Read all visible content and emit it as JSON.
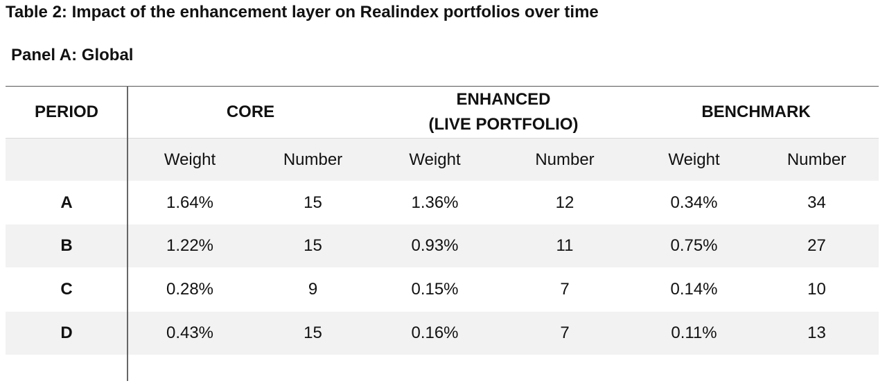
{
  "title": "Table 2: Impact of the enhancement layer on Realindex portfolios over time",
  "panel": "Panel A: Global",
  "headers": {
    "period": "PERIOD",
    "core": "CORE",
    "enhanced_line1": "ENHANCED",
    "enhanced_line2": "(LIVE PORTFOLIO)",
    "benchmark": "BENCHMARK"
  },
  "subheaders": {
    "core_weight": "Weight",
    "core_number": "Number",
    "enh_weight": "Weight",
    "enh_number": "Number",
    "bench_weight": "Weight",
    "bench_number": "Number"
  },
  "rows": [
    {
      "period": "A",
      "core_weight": "1.64%",
      "core_number": "15",
      "enh_weight": "1.36%",
      "enh_number": "12",
      "bench_weight": "0.34%",
      "bench_number": "34"
    },
    {
      "period": "B",
      "core_weight": "1.22%",
      "core_number": "15",
      "enh_weight": "0.93%",
      "enh_number": "11",
      "bench_weight": "0.75%",
      "bench_number": "27"
    },
    {
      "period": "C",
      "core_weight": "0.28%",
      "core_number": "9",
      "enh_weight": "0.15%",
      "enh_number": "7",
      "bench_weight": "0.14%",
      "bench_number": "10"
    },
    {
      "period": "D",
      "core_weight": "0.43%",
      "core_number": "15",
      "enh_weight": "0.16%",
      "enh_number": "7",
      "bench_weight": "0.11%",
      "bench_number": "13"
    }
  ]
}
